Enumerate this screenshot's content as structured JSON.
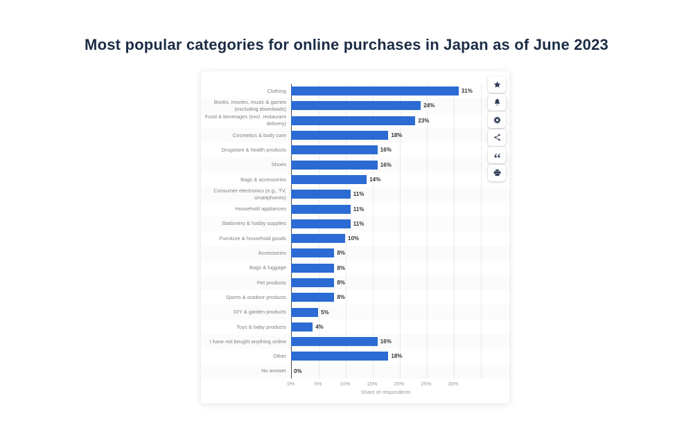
{
  "page": {
    "title": "Most popular categories for online purchases in Japan as of June 2023"
  },
  "chart_data": {
    "type": "bar",
    "orientation": "horizontal",
    "title": "Most popular categories for online purchases in Japan as of June 2023",
    "categories": [
      "Clothing",
      "Books, movies, music & games (excluding downloads)",
      "Food & beverages (excl. restaurant delivery)",
      "Cosmetics & body care",
      "Drugstore & health products",
      "Shoes",
      "Bags & accessories",
      "Consumer electronics (e.g., TV, smartphones)",
      "Household appliances",
      "Stationery & hobby supplies",
      "Furniture & household goods",
      "Accessories",
      "Bags & luggage",
      "Pet products",
      "Sports & outdoor products",
      "DIY & garden products",
      "Toys & baby products",
      "I have not bought anything online",
      "Other",
      "No answer"
    ],
    "values": [
      31,
      24,
      23,
      18,
      16,
      16,
      14,
      11,
      11,
      11,
      10,
      8,
      8,
      8,
      8,
      5,
      4,
      16,
      18,
      0
    ],
    "value_labels": [
      "31%",
      "24%",
      "23%",
      "18%",
      "16%",
      "16%",
      "14%",
      "11%",
      "11%",
      "11%",
      "10%",
      "8%",
      "8%",
      "8%",
      "8%",
      "5%",
      "4%",
      "16%",
      "18%",
      "0%"
    ],
    "xlabel": "Share of respondents",
    "xlim": [
      0,
      35
    ],
    "xticks": [
      {
        "value": 0,
        "label": "0%"
      },
      {
        "value": 5,
        "label": "5%"
      },
      {
        "value": 10,
        "label": "10%"
      },
      {
        "value": 15,
        "label": "15%"
      },
      {
        "value": 20,
        "label": "20%"
      },
      {
        "value": 25,
        "label": "25%"
      },
      {
        "value": 30,
        "label": "30%"
      }
    ],
    "grid": true,
    "legend": null,
    "bar_color": "#2b6bd3"
  },
  "toolbar": {
    "buttons": [
      {
        "name": "favorite",
        "icon": "star-icon"
      },
      {
        "name": "notification",
        "icon": "bell-icon"
      },
      {
        "name": "settings",
        "icon": "gear-icon"
      },
      {
        "name": "share",
        "icon": "share-icon"
      },
      {
        "name": "cite",
        "icon": "quote-icon"
      },
      {
        "name": "print",
        "icon": "printer-icon"
      }
    ]
  },
  "colors": {
    "bar": "#2b6bd3",
    "title": "#1b2c44",
    "axis": "#4a4a4a",
    "grid": "#ececec",
    "category_label": "#7f7f7f",
    "value_label": "#333333",
    "tick_label": "#9a9a9a",
    "icon": "#323f57"
  }
}
